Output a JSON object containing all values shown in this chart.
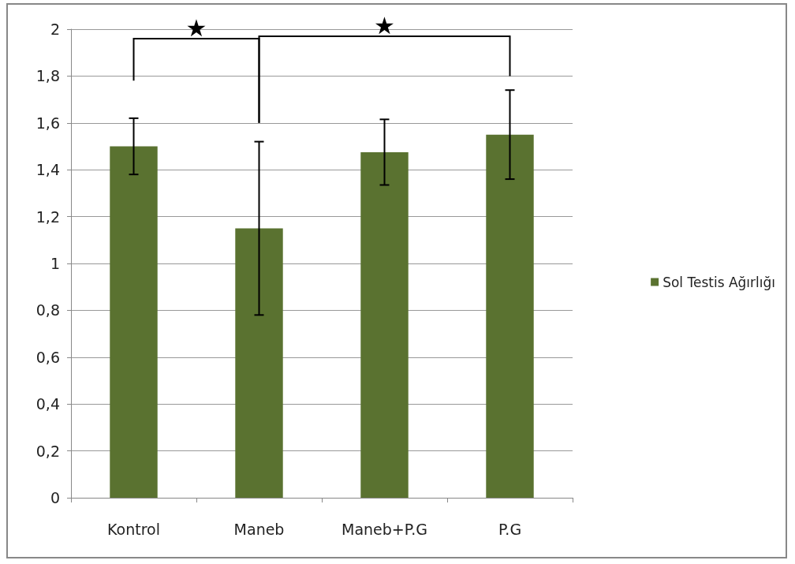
{
  "chart_data": {
    "type": "bar",
    "categories": [
      "Kontrol",
      "Maneb",
      "Maneb+P.G",
      "P.G"
    ],
    "series": [
      {
        "name": "Sol Testis Ağırlığı",
        "color": "#5a7230",
        "values": [
          1.5,
          1.15,
          1.475,
          1.55
        ],
        "errors": [
          0.12,
          0.37,
          0.14,
          0.19
        ]
      }
    ],
    "ylim": [
      0,
      2
    ],
    "yticks": [
      {
        "value": 0,
        "label": "0"
      },
      {
        "value": 0.2,
        "label": "0,2"
      },
      {
        "value": 0.4,
        "label": "0,4"
      },
      {
        "value": 0.6,
        "label": "0,6"
      },
      {
        "value": 0.8,
        "label": "0,8"
      },
      {
        "value": 1,
        "label": "1"
      },
      {
        "value": 1.2,
        "label": "1,2"
      },
      {
        "value": 1.4,
        "label": "1,4"
      },
      {
        "value": 1.6,
        "label": "1,6"
      },
      {
        "value": 1.8,
        "label": "1,8"
      },
      {
        "value": 2,
        "label": "2"
      }
    ],
    "grid": "y",
    "legend": "right",
    "marker": "square",
    "annotations": [
      "★",
      "★"
    ]
  }
}
